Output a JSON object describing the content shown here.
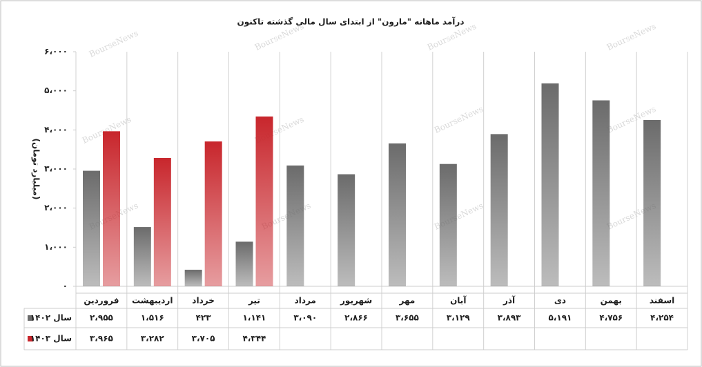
{
  "chart_data": {
    "type": "bar",
    "title": "درآمد ماهانه \"مارون\" از ابتدای سال مالی گذشته تاکنون",
    "y_label": "(میلیارد تومان)",
    "watermark": "BourseNews",
    "categories": [
      "فروردین",
      "اردیبهشت",
      "خرداد",
      "تیر",
      "مرداد",
      "شهریور",
      "مهر",
      "آبان",
      "آذر",
      "دی",
      "بهمن",
      "اسفند"
    ],
    "series": [
      {
        "name": "سال ۱۴۰۲",
        "color": "#6b6b6b",
        "values": [
          2955,
          1516,
          423,
          1141,
          3090,
          2866,
          3655,
          3129,
          3893,
          5191,
          4756,
          4254
        ],
        "value_labels": [
          "۲،۹۵۵",
          "۱،۵۱۶",
          "۴۲۳",
          "۱،۱۴۱",
          "۳،۰۹۰",
          "۲،۸۶۶",
          "۳،۶۵۵",
          "۳،۱۲۹",
          "۳،۸۹۳",
          "۵،۱۹۱",
          "۴،۷۵۶",
          "۴،۲۵۴"
        ]
      },
      {
        "name": "سال ۱۴۰۳",
        "color": "#c8262c",
        "values": [
          3965,
          3282,
          3705,
          4344,
          null,
          null,
          null,
          null,
          null,
          null,
          null,
          null
        ],
        "value_labels": [
          "۳،۹۶۵",
          "۳،۲۸۲",
          "۳،۷۰۵",
          "۴،۳۴۴",
          null,
          null,
          null,
          null,
          null,
          null,
          null,
          null
        ]
      }
    ],
    "ylim": [
      0,
      6000
    ],
    "yticks": [
      {
        "value": 0,
        "label": "۰"
      },
      {
        "value": 1000,
        "label": "۱،۰۰۰"
      },
      {
        "value": 2000,
        "label": "۲،۰۰۰"
      },
      {
        "value": 3000,
        "label": "۳،۰۰۰"
      },
      {
        "value": 4000,
        "label": "۴،۰۰۰"
      },
      {
        "value": 5000,
        "label": "۵،۰۰۰"
      },
      {
        "value": 6000,
        "label": "۶،۰۰۰"
      }
    ],
    "grid": true
  }
}
